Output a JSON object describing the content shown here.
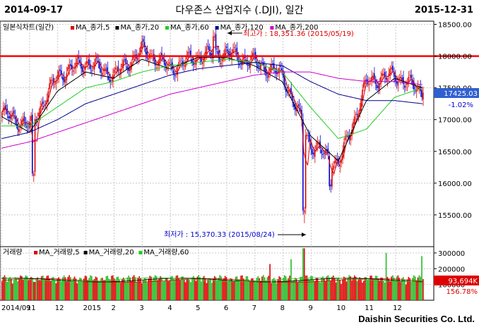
{
  "header": {
    "start_date": "2014-09-17",
    "title": "다우존스 산업지수 (.DJI), 일간",
    "end_date": "2015-12-31"
  },
  "footer": {
    "company": "Daishin Securities Co. Ltd."
  },
  "colors": {
    "up": "#dd0000",
    "down": "#0000cc",
    "ma5": "#dd0000",
    "ma20": "#000000",
    "ma60": "#22cc22",
    "ma120": "#00008b",
    "ma200": "#cc00cc",
    "resistance": "#ff0000",
    "vol_up": "#dd0000",
    "vol_down": "#22bb22"
  },
  "chart_data": [
    {
      "type": "line",
      "title": "",
      "legend": {
        "label": "일본식차트(일간)",
        "items": [
          {
            "name": "MA_종가,5",
            "color": "#dd0000"
          },
          {
            "name": "MA_종가,20",
            "color": "#000000"
          },
          {
            "name": "MA_종가,60",
            "color": "#22cc22"
          },
          {
            "name": "MA_종가,120",
            "color": "#00008b"
          },
          {
            "name": "MA_종가,200",
            "color": "#cc00cc"
          }
        ]
      },
      "y_ticks": [
        "18500.00",
        "18000.00",
        "17500.00",
        "17000.00",
        "16500.00",
        "16000.00",
        "15500.00"
      ],
      "ylim": [
        15000,
        18550
      ],
      "x_tick_labels": [
        "2014/09",
        "11",
        "12",
        "2015",
        "2",
        "3",
        "4",
        "5",
        "6",
        "7",
        "8",
        "9",
        "10",
        "11",
        "12"
      ],
      "resistance_level": 18000,
      "annotations": {
        "high": {
          "label": "최고가 : 18,351.36 (2015/05/19)",
          "value": 18351.36
        },
        "low": {
          "label": "최저가 : 15,370.33 (2015/08/24)",
          "value": 15370.33
        }
      },
      "current": {
        "value": "17425.03",
        "change": "-1.02%"
      },
      "x_month_index": [
        0,
        1,
        2,
        3,
        4,
        5,
        6,
        7,
        8,
        9,
        10,
        11,
        12,
        13,
        14,
        15
      ],
      "close_by_month": [
        17100,
        16900,
        17700,
        17900,
        17700,
        18100,
        17800,
        18000,
        18050,
        17900,
        17700,
        16600,
        16300,
        17600,
        17700,
        17425
      ],
      "ma20_by_month": [
        17050,
        16800,
        17450,
        17750,
        17650,
        17950,
        17800,
        17980,
        17980,
        17850,
        17600,
        16750,
        16350,
        17300,
        17650,
        17500
      ],
      "ma60_by_month": [
        16900,
        16900,
        17200,
        17500,
        17600,
        17750,
        17850,
        17900,
        17950,
        17900,
        17750,
        17200,
        16700,
        16850,
        17350,
        17500
      ],
      "ma120_by_month": [
        16700,
        16800,
        17000,
        17250,
        17400,
        17550,
        17700,
        17800,
        17850,
        17900,
        17850,
        17600,
        17400,
        17300,
        17300,
        17250
      ],
      "ma200_by_month": [
        16550,
        16650,
        16800,
        16950,
        17100,
        17250,
        17400,
        17500,
        17600,
        17700,
        17750,
        17750,
        17650,
        17600,
        17600,
        17550
      ]
    },
    {
      "type": "bar",
      "title": "",
      "legend": {
        "label": "거래량",
        "items": [
          {
            "name": "MA_거래량,5",
            "color": "#dd0000"
          },
          {
            "name": "MA_거래량,20",
            "color": "#000000"
          },
          {
            "name": "MA_거래량,60",
            "color": "#22cc22"
          }
        ]
      },
      "y_ticks": [
        "300000",
        "200000",
        "100000"
      ],
      "ylim": [
        0,
        340000
      ],
      "current": {
        "value": "93,694K",
        "change": "156.78%"
      }
    }
  ]
}
